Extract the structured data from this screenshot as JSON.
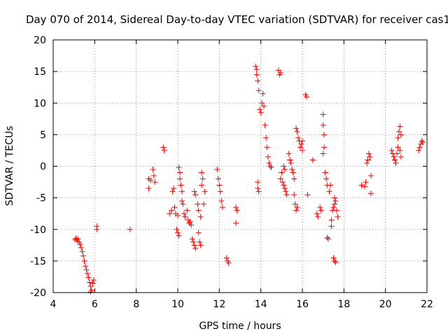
{
  "chart_data": {
    "type": "scatter",
    "title": "Day 070 of 2014, Sidereal Day-to-day VTEC variation (SDTVAR) for receiver cas1",
    "xlabel": "GPS time / hours",
    "ylabel": "SDTVAR / TECUs",
    "xlim": [
      4,
      22
    ],
    "ylim": [
      -20,
      20
    ],
    "xticks": [
      4,
      6,
      8,
      10,
      12,
      14,
      16,
      18,
      20,
      22
    ],
    "yticks": [
      -20,
      -15,
      -10,
      -5,
      0,
      5,
      10,
      15,
      20
    ],
    "grid": true,
    "marker": "+",
    "color": "#ff0000",
    "series": [
      {
        "name": "SDTVAR",
        "points": [
          [
            5.05,
            -11.6
          ],
          [
            5.1,
            -11.4
          ],
          [
            5.15,
            -11.8
          ],
          [
            5.2,
            -11.5
          ],
          [
            5.25,
            -12.0
          ],
          [
            5.3,
            -12.4
          ],
          [
            5.35,
            -12.9
          ],
          [
            5.4,
            -13.5
          ],
          [
            5.45,
            -14.2
          ],
          [
            5.5,
            -15.0
          ],
          [
            5.55,
            -15.8
          ],
          [
            5.6,
            -16.4
          ],
          [
            5.65,
            -17.0
          ],
          [
            5.7,
            -17.6
          ],
          [
            5.75,
            -18.4
          ],
          [
            5.8,
            -19.0
          ],
          [
            5.85,
            -19.6
          ],
          [
            5.9,
            -18.5
          ],
          [
            5.95,
            -18.0
          ],
          [
            5.8,
            -19.9
          ],
          [
            6.1,
            -9.5
          ],
          [
            6.1,
            -10.0
          ],
          [
            7.7,
            -10.0
          ],
          [
            8.6,
            -3.5
          ],
          [
            8.6,
            -2.0
          ],
          [
            8.7,
            -2.2
          ],
          [
            8.8,
            -0.5
          ],
          [
            8.85,
            -1.5
          ],
          [
            8.9,
            -2.5
          ],
          [
            9.3,
            3.0
          ],
          [
            9.35,
            2.5
          ],
          [
            9.6,
            -7.5
          ],
          [
            9.7,
            -7.0
          ],
          [
            9.75,
            -4.0
          ],
          [
            9.8,
            -3.5
          ],
          [
            9.85,
            -6.5
          ],
          [
            9.9,
            -7.5
          ],
          [
            9.95,
            -10.0
          ],
          [
            10.0,
            -10.5
          ],
          [
            10.05,
            -11.0
          ],
          [
            10.0,
            -7.8
          ],
          [
            10.05,
            -0.2
          ],
          [
            10.1,
            -1.0
          ],
          [
            10.1,
            -2.0
          ],
          [
            10.15,
            -3.0
          ],
          [
            10.2,
            -4.0
          ],
          [
            10.2,
            -5.5
          ],
          [
            10.25,
            -6.0
          ],
          [
            10.3,
            -7.5
          ],
          [
            10.35,
            -8.0
          ],
          [
            10.45,
            -7.0
          ],
          [
            10.5,
            -8.5
          ],
          [
            10.55,
            -9.0
          ],
          [
            10.6,
            -8.8
          ],
          [
            10.65,
            -9.3
          ],
          [
            10.7,
            -11.5
          ],
          [
            10.75,
            -12.0
          ],
          [
            10.8,
            -12.5
          ],
          [
            10.85,
            -13.0
          ],
          [
            10.8,
            -4.0
          ],
          [
            10.85,
            -4.5
          ],
          [
            10.95,
            -6.0
          ],
          [
            11.0,
            -7.0
          ],
          [
            11.0,
            -10.5
          ],
          [
            11.05,
            -12.0
          ],
          [
            11.1,
            -12.5
          ],
          [
            11.1,
            -8.0
          ],
          [
            11.15,
            -3.0
          ],
          [
            11.15,
            -1.0
          ],
          [
            11.2,
            -2.0
          ],
          [
            11.25,
            -6.0
          ],
          [
            11.3,
            -4.0
          ],
          [
            12.35,
            -14.5
          ],
          [
            12.4,
            -15.0
          ],
          [
            12.45,
            -15.3
          ],
          [
            11.9,
            -0.5
          ],
          [
            11.95,
            -2.0
          ],
          [
            12.0,
            -3.0
          ],
          [
            12.05,
            -4.0
          ],
          [
            12.1,
            -5.5
          ],
          [
            12.15,
            -6.5
          ],
          [
            12.8,
            -6.5
          ],
          [
            12.85,
            -7.0
          ],
          [
            12.8,
            -9.0
          ],
          [
            13.75,
            15.8
          ],
          [
            13.8,
            15.3
          ],
          [
            13.8,
            14.5
          ],
          [
            13.85,
            13.5
          ],
          [
            13.9,
            12.0
          ],
          [
            13.95,
            9.0
          ],
          [
            14.0,
            8.5
          ],
          [
            14.05,
            10.0
          ],
          [
            14.1,
            11.5
          ],
          [
            14.15,
            9.5
          ],
          [
            14.2,
            6.5
          ],
          [
            14.25,
            4.5
          ],
          [
            14.3,
            3.0
          ],
          [
            14.35,
            1.5
          ],
          [
            14.4,
            0.5
          ],
          [
            14.45,
            0.0
          ],
          [
            14.5,
            -0.2
          ],
          [
            13.85,
            -2.5
          ],
          [
            13.85,
            -3.5
          ],
          [
            13.9,
            -4.0
          ],
          [
            14.85,
            15.2
          ],
          [
            14.9,
            14.5
          ],
          [
            14.95,
            14.8
          ],
          [
            14.95,
            -2.0
          ],
          [
            15.0,
            -1.0
          ],
          [
            15.05,
            -2.5
          ],
          [
            15.1,
            -3.0
          ],
          [
            15.15,
            -3.5
          ],
          [
            15.2,
            -4.0
          ],
          [
            15.25,
            -4.5
          ],
          [
            15.1,
            0.0
          ],
          [
            15.15,
            -0.5
          ],
          [
            15.35,
            2.0
          ],
          [
            15.4,
            1.0
          ],
          [
            15.45,
            0.5
          ],
          [
            15.5,
            -0.5
          ],
          [
            15.55,
            -1.0
          ],
          [
            15.6,
            -2.0
          ],
          [
            15.6,
            -4.5
          ],
          [
            15.65,
            -6.0
          ],
          [
            15.7,
            -7.0
          ],
          [
            15.75,
            -6.5
          ],
          [
            15.7,
            6.0
          ],
          [
            15.75,
            5.5
          ],
          [
            15.8,
            4.5
          ],
          [
            15.85,
            4.0
          ],
          [
            15.9,
            3.0
          ],
          [
            15.95,
            3.5
          ],
          [
            16.0,
            2.5
          ],
          [
            16.0,
            4.0
          ],
          [
            16.15,
            11.3
          ],
          [
            16.2,
            11.0
          ],
          [
            16.25,
            -4.5
          ],
          [
            16.5,
            1.0
          ],
          [
            16.7,
            -7.5
          ],
          [
            16.75,
            -8.0
          ],
          [
            16.85,
            -6.5
          ],
          [
            16.9,
            -7.0
          ],
          [
            17.0,
            8.2
          ],
          [
            17.0,
            6.5
          ],
          [
            17.05,
            5.0
          ],
          [
            17.05,
            3.0
          ],
          [
            17.0,
            2.0
          ],
          [
            17.1,
            -1.0
          ],
          [
            17.15,
            -2.0
          ],
          [
            17.2,
            -3.0
          ],
          [
            17.2,
            -11.3
          ],
          [
            17.25,
            -11.5
          ],
          [
            17.3,
            -4.0
          ],
          [
            17.35,
            -3.0
          ],
          [
            17.4,
            -9.5
          ],
          [
            17.4,
            -8.5
          ],
          [
            17.45,
            -7.0
          ],
          [
            17.5,
            -6.5
          ],
          [
            17.55,
            -6.0
          ],
          [
            17.55,
            -5.0
          ],
          [
            17.6,
            -5.5
          ],
          [
            17.65,
            -7.0
          ],
          [
            17.7,
            -8.0
          ],
          [
            17.5,
            -14.5
          ],
          [
            17.55,
            -15.0
          ],
          [
            17.6,
            -15.2
          ],
          [
            18.85,
            -3.0
          ],
          [
            19.0,
            -3.2
          ],
          [
            19.05,
            -2.5
          ],
          [
            19.1,
            0.5
          ],
          [
            19.15,
            1.0
          ],
          [
            19.2,
            2.0
          ],
          [
            19.25,
            1.5
          ],
          [
            19.3,
            -1.5
          ],
          [
            19.3,
            -4.3
          ],
          [
            20.3,
            2.5
          ],
          [
            20.35,
            2.0
          ],
          [
            20.4,
            1.5
          ],
          [
            20.45,
            1.0
          ],
          [
            20.5,
            0.5
          ],
          [
            20.55,
            2.0
          ],
          [
            20.6,
            3.0
          ],
          [
            20.6,
            4.5
          ],
          [
            20.65,
            5.5
          ],
          [
            20.7,
            6.3
          ],
          [
            20.75,
            5.0
          ],
          [
            20.7,
            2.5
          ],
          [
            20.75,
            1.5
          ],
          [
            21.6,
            2.5
          ],
          [
            21.65,
            3.0
          ],
          [
            21.7,
            3.5
          ],
          [
            21.75,
            4.0
          ],
          [
            21.8,
            3.8
          ]
        ]
      }
    ]
  }
}
